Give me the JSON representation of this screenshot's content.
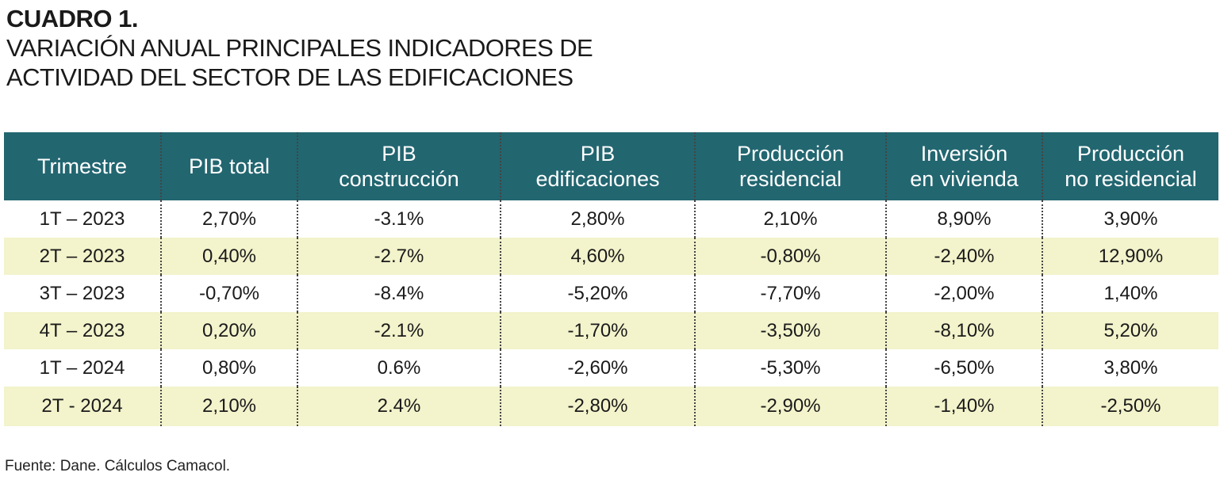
{
  "heading": {
    "label": "CUADRO 1.",
    "title": "VARIACIÓN ANUAL PRINCIPALES INDICADORES DE\nACTIVIDAD DEL SECTOR DE LAS EDIFICACIONES"
  },
  "chart_data": {
    "type": "table",
    "columns": [
      "Trimestre",
      "PIB total",
      "PIB\nconstrucción",
      "PIB\nedificaciones",
      "Producción\nresidencial",
      "Inversión\nen vivienda",
      "Producción\nno residencial"
    ],
    "rows": [
      [
        "1T – 2023",
        "2,70%",
        "-3.1%",
        "2,80%",
        "2,10%",
        "8,90%",
        "3,90%"
      ],
      [
        "2T – 2023",
        "0,40%",
        "-2.7%",
        "4,60%",
        "-0,80%",
        "-2,40%",
        "12,90%"
      ],
      [
        "3T – 2023",
        "-0,70%",
        "-8.4%",
        "-5,20%",
        "-7,70%",
        "-2,00%",
        "1,40%"
      ],
      [
        "4T – 2023",
        "0,20%",
        "-2.1%",
        "-1,70%",
        "-3,50%",
        "-8,10%",
        "5,20%"
      ],
      [
        "1T – 2024",
        "0,80%",
        "0.6%",
        "-2,60%",
        "-5,30%",
        "-6,50%",
        "3,80%"
      ],
      [
        "2T - 2024",
        "2,10%",
        "2.4%",
        "-2,80%",
        "-2,90%",
        "-1,40%",
        "-2,50%"
      ]
    ],
    "header_color": "#226670",
    "stripe_color": "#f3f3cc"
  },
  "source": "Fuente: Dane. Cálculos Camacol."
}
